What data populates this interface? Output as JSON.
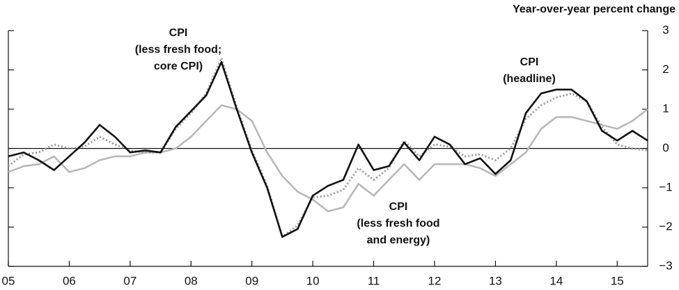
{
  "chart_data": {
    "type": "line",
    "axis_label": "Year-over-year percent change",
    "x": [
      2005,
      2005.25,
      2005.5,
      2005.75,
      2006,
      2006.25,
      2006.5,
      2006.75,
      2007,
      2007.25,
      2007.5,
      2007.75,
      2008,
      2008.25,
      2008.5,
      2008.75,
      2009,
      2009.25,
      2009.5,
      2009.75,
      2010,
      2010.25,
      2010.5,
      2010.75,
      2011,
      2011.25,
      2011.5,
      2011.75,
      2012,
      2012.25,
      2012.5,
      2012.75,
      2013,
      2013.25,
      2013.5,
      2013.75,
      2014,
      2014.25,
      2014.5,
      2014.75,
      2015,
      2015.25,
      2015.5
    ],
    "series": [
      {
        "label": [
          "CPI",
          "(less fresh food",
          "and energy)"
        ],
        "color": "#b8b8b8",
        "style": "solid",
        "values": [
          -0.6,
          -0.45,
          -0.4,
          -0.2,
          -0.6,
          -0.5,
          -0.3,
          -0.2,
          -0.2,
          -0.1,
          -0.1,
          0.0,
          0.3,
          0.7,
          1.1,
          1.0,
          0.7,
          -0.1,
          -0.7,
          -1.1,
          -1.3,
          -1.6,
          -1.5,
          -0.9,
          -1.2,
          -0.8,
          -0.4,
          -0.8,
          -0.4,
          -0.4,
          -0.4,
          -0.5,
          -0.7,
          -0.4,
          -0.1,
          0.5,
          0.8,
          0.8,
          0.7,
          0.6,
          0.5,
          0.7,
          1.0
        ]
      },
      {
        "label": [
          "CPI",
          "(less fresh food;",
          "core CPI)"
        ],
        "color": "#999999",
        "style": "dotted",
        "values": [
          -0.45,
          -0.15,
          -0.1,
          0.1,
          0.0,
          0.05,
          0.3,
          0.1,
          -0.05,
          -0.1,
          -0.1,
          0.5,
          0.9,
          1.4,
          2.3,
          1.05,
          -0.05,
          -0.95,
          -2.25,
          -1.95,
          -1.25,
          -1.2,
          -1.05,
          -0.5,
          -0.8,
          -0.5,
          0.2,
          -0.2,
          0.1,
          0.05,
          -0.2,
          -0.15,
          -0.3,
          0.0,
          0.75,
          1.1,
          1.3,
          1.4,
          1.2,
          0.55,
          0.1,
          0.0,
          -0.05
        ]
      },
      {
        "label": [
          "CPI",
          "(headline)"
        ],
        "color": "#111111",
        "style": "solid",
        "values": [
          -0.2,
          -0.1,
          -0.3,
          -0.55,
          -0.2,
          0.15,
          0.6,
          0.3,
          -0.1,
          -0.05,
          -0.1,
          0.55,
          0.95,
          1.35,
          2.2,
          1.0,
          -0.1,
          -1.0,
          -2.25,
          -2.05,
          -1.2,
          -0.95,
          -0.8,
          0.1,
          -0.55,
          -0.45,
          0.15,
          -0.3,
          0.3,
          0.1,
          -0.4,
          -0.25,
          -0.65,
          -0.3,
          0.9,
          1.4,
          1.5,
          1.5,
          1.2,
          0.45,
          0.2,
          0.45,
          0.2
        ]
      }
    ],
    "xlim": [
      2005,
      2015.5
    ],
    "xticks": [
      {
        "value": 2005,
        "label": "05"
      },
      {
        "value": 2006,
        "label": "06"
      },
      {
        "value": 2007,
        "label": "07"
      },
      {
        "value": 2008,
        "label": "08"
      },
      {
        "value": 2009,
        "label": "09"
      },
      {
        "value": 2010,
        "label": "10"
      },
      {
        "value": 2011,
        "label": "11"
      },
      {
        "value": 2012,
        "label": "12"
      },
      {
        "value": 2013,
        "label": "13"
      },
      {
        "value": 2014,
        "label": "14"
      },
      {
        "value": 2015,
        "label": "15"
      }
    ],
    "ylim": [
      -3,
      3
    ],
    "yticks": [
      {
        "value": -3,
        "label": "−3"
      },
      {
        "value": -2,
        "label": "−2"
      },
      {
        "value": -1,
        "label": "−1"
      },
      0,
      1,
      2,
      3
    ],
    "y_axis_side": "right",
    "zero_line": true
  }
}
